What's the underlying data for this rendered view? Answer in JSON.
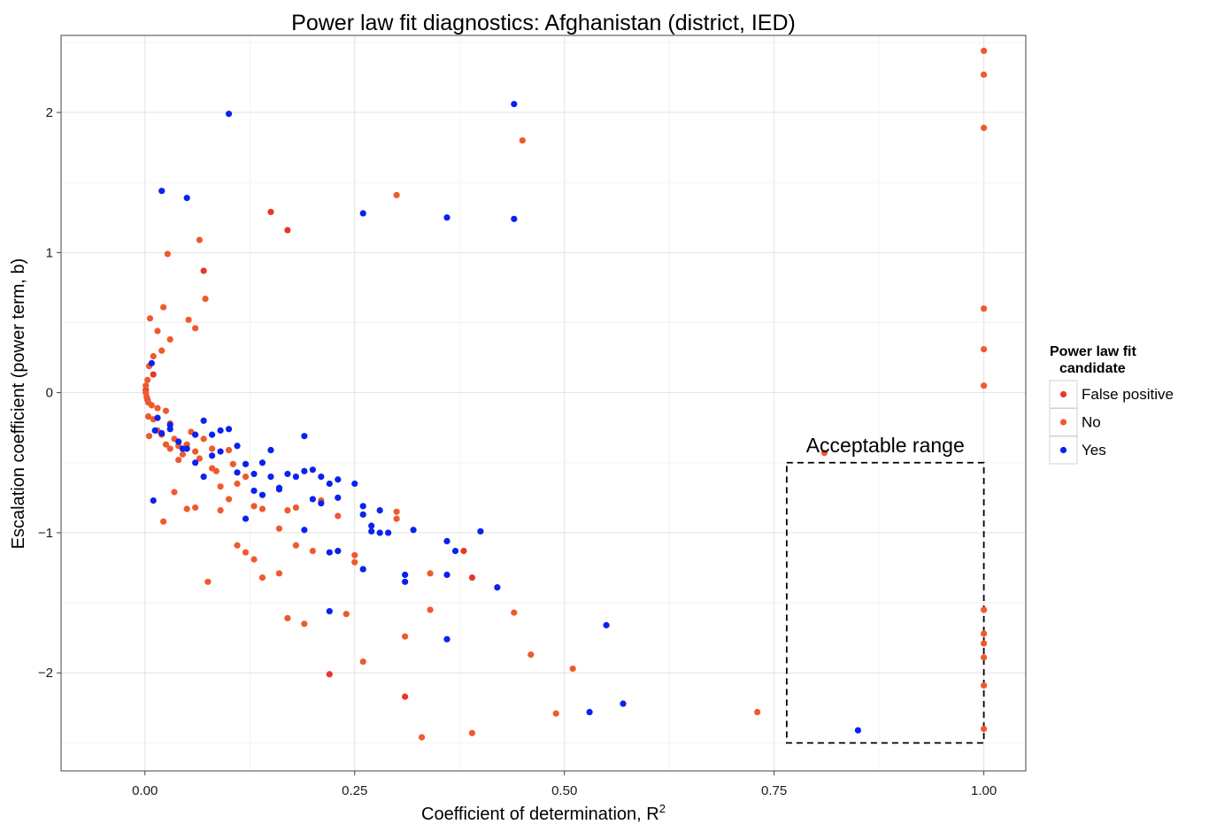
{
  "chart_data": {
    "type": "scatter",
    "title": "Power law fit diagnostics: Afghanistan (district, IED)",
    "xlabel": "Coefficient of determination, R",
    "xlabel_superscript": "2",
    "ylabel": "Escalation coefficient (power term, b)",
    "xlim": [
      -0.1,
      1.05
    ],
    "ylim": [
      -2.7,
      2.55
    ],
    "xticks": [
      0.0,
      0.25,
      0.5,
      0.75,
      1.0
    ],
    "xtick_labels": [
      "0.00",
      "0.25",
      "0.50",
      "0.75",
      "1.00"
    ],
    "yticks": [
      -2,
      -1,
      0,
      1,
      2
    ],
    "ytick_labels": [
      "−2",
      "−1",
      "0",
      "1",
      "2"
    ],
    "grid": true,
    "legend": {
      "title_line1": "Power law fit",
      "title_line2": "candidate",
      "placement": "right",
      "entries": [
        {
          "label": "False positive",
          "color": "#e8372a"
        },
        {
          "label": "No",
          "color": "#ee5a2e"
        },
        {
          "label": "Yes",
          "color": "#0a22ee"
        }
      ]
    },
    "annotation": {
      "text": "Acceptable range",
      "box": {
        "x": [
          0.765,
          1.0
        ],
        "y": [
          -2.5,
          -0.5
        ]
      },
      "style": "dashed"
    },
    "series": [
      {
        "name": "False positive",
        "color": "#e8372a",
        "points": [
          [
            0.07,
            0.87
          ],
          [
            0.17,
            1.16
          ],
          [
            0.15,
            1.29
          ],
          [
            0.38,
            -1.13
          ],
          [
            0.39,
            -1.32
          ],
          [
            0.22,
            -2.01
          ],
          [
            0.31,
            -2.17
          ],
          [
            0.001,
            0.02
          ],
          [
            0.003,
            -0.05
          ],
          [
            0.01,
            0.13
          ]
        ]
      },
      {
        "name": "No",
        "color": "#ee5a2e",
        "points": [
          [
            1.0,
            2.44
          ],
          [
            1.0,
            2.27
          ],
          [
            1.0,
            1.89
          ],
          [
            1.0,
            0.6
          ],
          [
            1.0,
            0.31
          ],
          [
            1.0,
            0.05
          ],
          [
            1.0,
            -1.55
          ],
          [
            1.0,
            -1.72
          ],
          [
            1.0,
            -1.79
          ],
          [
            1.0,
            -1.89
          ],
          [
            1.0,
            -2.09
          ],
          [
            1.0,
            -2.4
          ],
          [
            0.45,
            1.8
          ],
          [
            0.3,
            1.41
          ],
          [
            0.81,
            -0.43
          ],
          [
            0.73,
            -2.28
          ],
          [
            0.49,
            -2.29
          ],
          [
            0.51,
            -1.97
          ],
          [
            0.46,
            -1.87
          ],
          [
            0.44,
            -1.57
          ],
          [
            0.39,
            -2.43
          ],
          [
            0.33,
            -2.46
          ],
          [
            0.34,
            -1.29
          ],
          [
            0.34,
            -1.55
          ],
          [
            0.31,
            -1.74
          ],
          [
            0.26,
            -1.92
          ],
          [
            0.24,
            -1.58
          ],
          [
            0.19,
            -1.65
          ],
          [
            0.17,
            -1.61
          ],
          [
            0.16,
            -1.29
          ],
          [
            0.25,
            -1.16
          ],
          [
            0.25,
            -1.21
          ],
          [
            0.23,
            -1.13
          ],
          [
            0.2,
            -1.13
          ],
          [
            0.18,
            -1.09
          ],
          [
            0.16,
            -0.97
          ],
          [
            0.14,
            -1.32
          ],
          [
            0.13,
            -1.19
          ],
          [
            0.12,
            -1.14
          ],
          [
            0.11,
            -1.09
          ],
          [
            0.075,
            -1.35
          ],
          [
            0.3,
            -0.85
          ],
          [
            0.3,
            -0.9
          ],
          [
            0.23,
            -0.88
          ],
          [
            0.21,
            -0.77
          ],
          [
            0.18,
            -0.82
          ],
          [
            0.17,
            -0.84
          ],
          [
            0.14,
            -0.83
          ],
          [
            0.13,
            -0.81
          ],
          [
            0.1,
            -0.76
          ],
          [
            0.09,
            -0.84
          ],
          [
            0.06,
            -0.82
          ],
          [
            0.05,
            -0.83
          ],
          [
            0.035,
            -0.71
          ],
          [
            0.022,
            -0.92
          ],
          [
            0.12,
            -0.6
          ],
          [
            0.11,
            -0.65
          ],
          [
            0.09,
            -0.67
          ],
          [
            0.08,
            -0.54
          ],
          [
            0.065,
            1.09
          ],
          [
            0.027,
            0.99
          ],
          [
            0.072,
            0.67
          ],
          [
            0.022,
            0.61
          ],
          [
            0.052,
            0.52
          ],
          [
            0.006,
            0.53
          ],
          [
            0.06,
            0.46
          ],
          [
            0.015,
            0.44
          ],
          [
            0.03,
            0.38
          ],
          [
            0.02,
            0.3
          ],
          [
            0.01,
            0.26
          ],
          [
            0.005,
            0.19
          ],
          [
            0.003,
            0.09
          ],
          [
            0.001,
            0.05
          ],
          [
            0.001,
            0.0
          ],
          [
            0.002,
            -0.03
          ],
          [
            0.004,
            -0.07
          ],
          [
            0.008,
            -0.09
          ],
          [
            0.015,
            -0.11
          ],
          [
            0.025,
            -0.13
          ],
          [
            0.004,
            -0.17
          ],
          [
            0.01,
            -0.19
          ],
          [
            0.03,
            -0.22
          ],
          [
            0.005,
            -0.31
          ],
          [
            0.02,
            -0.3
          ],
          [
            0.035,
            -0.33
          ],
          [
            0.04,
            -0.38
          ],
          [
            0.045,
            -0.44
          ],
          [
            0.05,
            -0.37
          ],
          [
            0.055,
            -0.28
          ],
          [
            0.06,
            -0.42
          ],
          [
            0.065,
            -0.47
          ],
          [
            0.07,
            -0.33
          ],
          [
            0.08,
            -0.4
          ],
          [
            0.085,
            -0.56
          ],
          [
            0.1,
            -0.41
          ],
          [
            0.105,
            -0.51
          ],
          [
            0.04,
            -0.48
          ],
          [
            0.03,
            -0.4
          ],
          [
            0.015,
            -0.27
          ],
          [
            0.025,
            -0.37
          ]
        ]
      },
      {
        "name": "Yes",
        "color": "#0a22ee",
        "points": [
          [
            0.1,
            1.99
          ],
          [
            0.44,
            2.06
          ],
          [
            0.02,
            1.44
          ],
          [
            0.05,
            1.39
          ],
          [
            0.26,
            1.28
          ],
          [
            0.36,
            1.25
          ],
          [
            0.44,
            1.24
          ],
          [
            0.85,
            -2.41
          ],
          [
            0.57,
            -2.22
          ],
          [
            0.53,
            -2.28
          ],
          [
            0.55,
            -1.66
          ],
          [
            0.36,
            -1.76
          ],
          [
            0.22,
            -1.56
          ],
          [
            0.42,
            -1.39
          ],
          [
            0.4,
            -0.99
          ],
          [
            0.37,
            -1.13
          ],
          [
            0.36,
            -1.06
          ],
          [
            0.36,
            -1.3
          ],
          [
            0.31,
            -1.3
          ],
          [
            0.31,
            -1.35
          ],
          [
            0.32,
            -0.98
          ],
          [
            0.29,
            -1.0
          ],
          [
            0.27,
            -0.95
          ],
          [
            0.27,
            -0.99
          ],
          [
            0.26,
            -1.26
          ],
          [
            0.22,
            -1.14
          ],
          [
            0.23,
            -1.13
          ],
          [
            0.26,
            -0.87
          ],
          [
            0.26,
            -0.81
          ],
          [
            0.28,
            -0.84
          ],
          [
            0.25,
            -0.65
          ],
          [
            0.23,
            -0.75
          ],
          [
            0.23,
            -0.62
          ],
          [
            0.21,
            -0.79
          ],
          [
            0.2,
            -0.76
          ],
          [
            0.21,
            -0.6
          ],
          [
            0.19,
            -0.31
          ],
          [
            0.19,
            -0.56
          ],
          [
            0.18,
            -0.6
          ],
          [
            0.17,
            -0.58
          ],
          [
            0.16,
            -0.69
          ],
          [
            0.15,
            -0.6
          ],
          [
            0.14,
            -0.73
          ],
          [
            0.14,
            -0.5
          ],
          [
            0.13,
            -0.58
          ],
          [
            0.12,
            -0.51
          ],
          [
            0.11,
            -0.57
          ],
          [
            0.11,
            -0.38
          ],
          [
            0.1,
            -0.26
          ],
          [
            0.09,
            -0.27
          ],
          [
            0.08,
            -0.3
          ],
          [
            0.07,
            -0.2
          ],
          [
            0.06,
            -0.3
          ],
          [
            0.06,
            -0.5
          ],
          [
            0.07,
            -0.6
          ],
          [
            0.05,
            -0.4
          ],
          [
            0.04,
            -0.35
          ],
          [
            0.03,
            -0.26
          ],
          [
            0.02,
            -0.29
          ],
          [
            0.012,
            -0.27
          ],
          [
            0.015,
            -0.18
          ],
          [
            0.01,
            -0.77
          ],
          [
            0.008,
            0.21
          ],
          [
            0.03,
            -0.23
          ],
          [
            0.045,
            -0.4
          ],
          [
            0.08,
            -0.45
          ],
          [
            0.09,
            -0.42
          ],
          [
            0.12,
            -0.9
          ],
          [
            0.16,
            -0.68
          ],
          [
            0.19,
            -0.98
          ],
          [
            0.22,
            -0.65
          ],
          [
            0.28,
            -1.0
          ],
          [
            0.2,
            -0.55
          ],
          [
            0.15,
            -0.41
          ],
          [
            0.13,
            -0.7
          ]
        ]
      }
    ]
  }
}
